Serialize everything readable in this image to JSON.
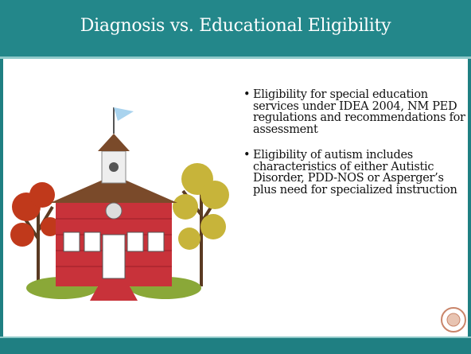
{
  "header": {
    "title": "Diagnosis vs. Educational Eligibility"
  },
  "bullets": [
    "Eligibility for special education services under IDEA 2004, NM PED regulations and recommendations for assessment",
    "Eligibility of autism includes characteristics of either Autistic Disorder, PDD-NOS or Asperger’s plus need for specialized instruction"
  ]
}
